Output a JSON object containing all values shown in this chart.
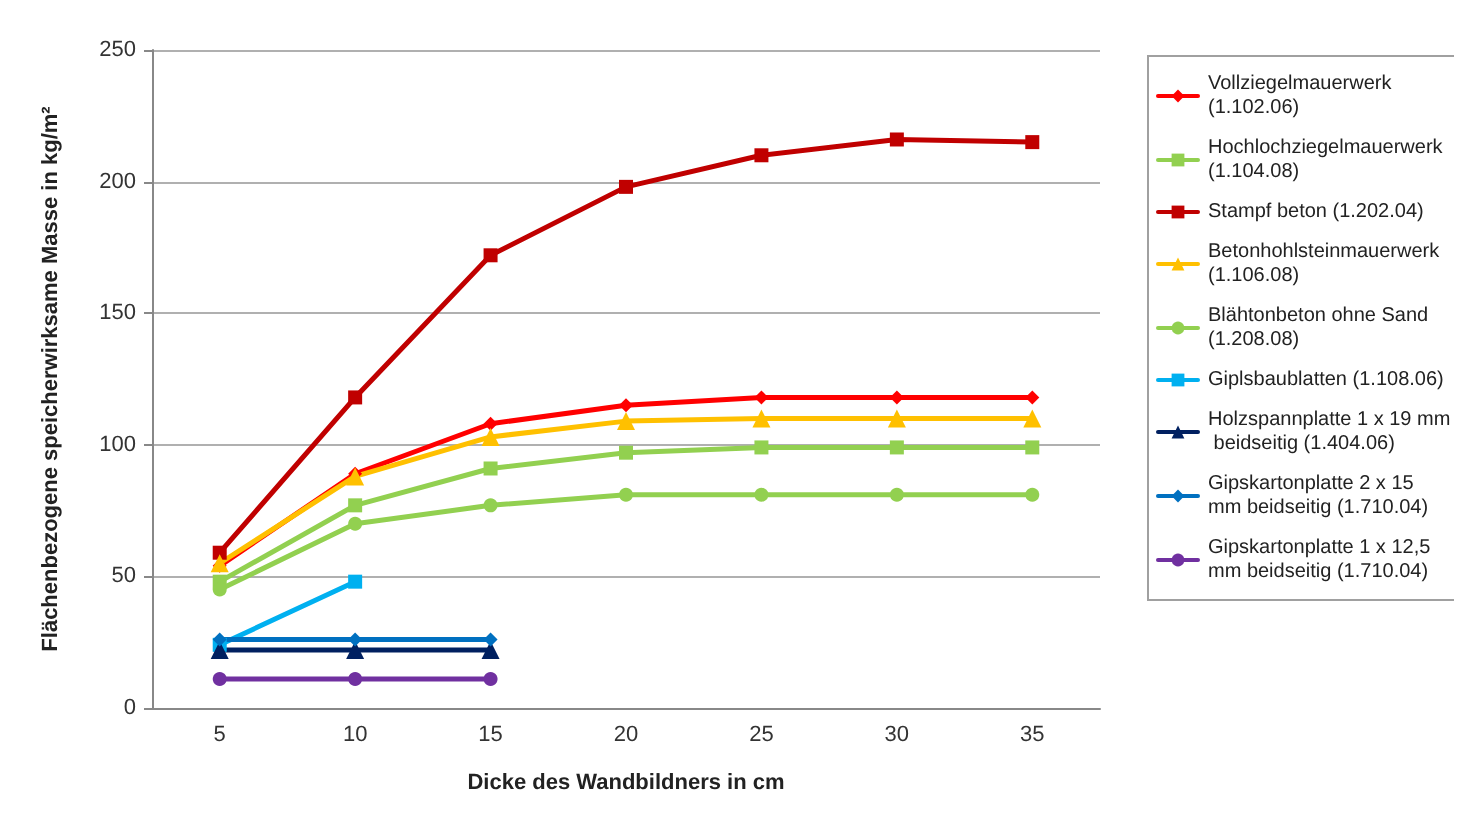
{
  "chart_data": {
    "type": "line",
    "xlabel": "Dicke des Wandbildners in cm",
    "ylabel": "Flächenbezogene speicherwirksame Masse in kg/m²",
    "categories": [
      "5",
      "10",
      "15",
      "20",
      "25",
      "30",
      "35"
    ],
    "ylim": [
      0,
      250
    ],
    "yticks": [
      0,
      50,
      100,
      150,
      200,
      250
    ],
    "grid": "y",
    "legend": "right",
    "series": [
      {
        "name": "Vollziegelmauerwerk (1.102.06)",
        "color": "#ff0000",
        "marker": "diamond",
        "values": [
          54,
          89,
          108,
          115,
          118,
          118,
          118
        ]
      },
      {
        "name": "Hochlochziegelmauerwerk (1.104.08)",
        "color": "#92d050",
        "marker": "square",
        "values": [
          48,
          77,
          91,
          97,
          99,
          99,
          99
        ]
      },
      {
        "name": "Stampf beton (1.202.04)",
        "color": "#c00000",
        "marker": "square",
        "values": [
          59,
          118,
          172,
          198,
          210,
          216,
          215
        ]
      },
      {
        "name": "Betonhohlsteinmauerwerk (1.106.08)",
        "color": "#ffc000",
        "marker": "triangle",
        "values": [
          55,
          88,
          103,
          109,
          110,
          110,
          110
        ]
      },
      {
        "name": "Blähtonbeton ohne Sand (1.208.08)",
        "color": "#92d050",
        "marker": "circle",
        "values": [
          45,
          70,
          77,
          81,
          81,
          81,
          81
        ]
      },
      {
        "name": "Giplsbaublatten (1.108.06)",
        "color": "#00b0f0",
        "marker": "square",
        "values": [
          24,
          48,
          null,
          null,
          null,
          null,
          null
        ]
      },
      {
        "name": "Holzspannplatte 1 x 19 mm beidseitig (1.404.06)",
        "color": "#002060",
        "marker": "triangle",
        "values": [
          22,
          22,
          22,
          null,
          null,
          null,
          null
        ]
      },
      {
        "name": "Gipskartonplatte 2 x 15 mm beidseitig (1.710.04)",
        "color": "#0070c0",
        "marker": "diamond",
        "values": [
          26,
          26,
          26,
          null,
          null,
          null,
          null
        ]
      },
      {
        "name": "Gipskartonplatte 1 x 12,5 mm beidseitig (1.710.04)",
        "color": "#7030a0",
        "marker": "circle",
        "values": [
          11,
          11,
          11,
          null,
          null,
          null,
          null
        ]
      }
    ]
  }
}
